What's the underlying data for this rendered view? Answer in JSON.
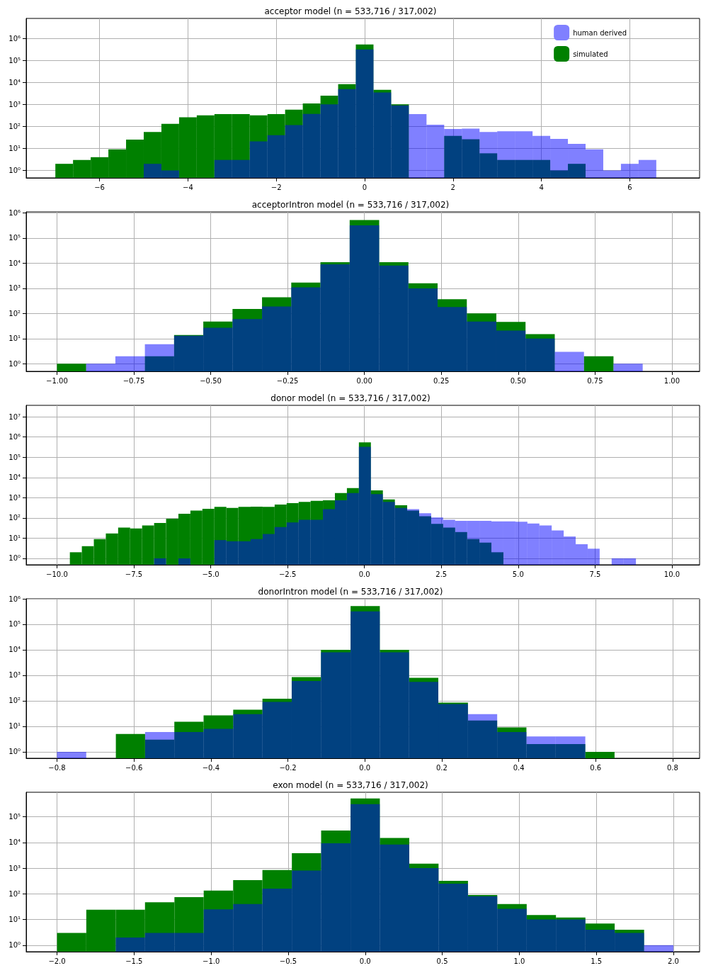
{
  "chart_data": [
    {
      "type": "histogram",
      "title": "acceptor model (n = 533,716 / 317,002)",
      "legend": "top right",
      "grid": true,
      "log": "y",
      "bins": [
        -7.0,
        -6.6,
        -6.2,
        -5.8,
        -5.4,
        -5.0,
        -4.6,
        -4.2,
        -3.8,
        -3.4,
        -3.0,
        -2.6,
        -2.2,
        -1.8,
        -1.4,
        -1.0,
        -0.6,
        -0.2,
        0.2,
        0.6,
        1.0,
        1.4,
        1.8,
        2.2,
        2.6,
        3.0,
        3.4,
        3.8,
        4.2,
        4.6,
        5.0,
        5.4,
        5.8,
        6.2,
        6.6
      ],
      "series": [
        {
          "name": "human derived",
          "color": "#8080ff",
          "values": [
            null,
            null,
            null,
            null,
            null,
            2,
            1,
            null,
            null,
            3,
            3,
            21,
            40,
            115,
            370,
            1000,
            4900,
            310000,
            3500,
            900,
            360,
            120,
            76,
            80,
            56,
            60,
            60,
            37,
            27,
            16,
            9,
            1,
            2,
            3
          ]
        },
        {
          "name": "simulated",
          "color": "#008000",
          "values": [
            2,
            3,
            4,
            9,
            25,
            56,
            130,
            260,
            320,
            360,
            360,
            320,
            360,
            580,
            1100,
            2500,
            8300,
            530000,
            4600,
            1000,
            null,
            null,
            37,
            26,
            6,
            3,
            3,
            3,
            1,
            2,
            null,
            null,
            null,
            null
          ]
        }
      ],
      "xlim": [
        -7.66,
        7.58
      ],
      "xticks": [
        {
          "value": -6,
          "label": "−6"
        },
        {
          "value": -4,
          "label": "−4"
        },
        {
          "value": -2,
          "label": "−2"
        },
        0,
        2,
        4,
        6
      ],
      "ylim": [
        0.46,
        8000000
      ],
      "yticks": [
        {
          "value": 1,
          "label": "10⁰"
        },
        {
          "value": 10,
          "label": "10¹"
        },
        {
          "value": 100,
          "label": "10²"
        },
        {
          "value": 1000,
          "label": "10³"
        },
        {
          "value": 10000,
          "label": "10⁴"
        },
        {
          "value": 100000,
          "label": "10⁵"
        },
        {
          "value": 1000000,
          "label": "10⁶"
        }
      ]
    },
    {
      "type": "histogram",
      "title": "acceptorIntron model (n = 533,716 / 317,002)",
      "grid": true,
      "log": "y",
      "bins": [
        -1.0,
        -0.905,
        -0.81,
        -0.714,
        -0.619,
        -0.524,
        -0.429,
        -0.333,
        -0.238,
        -0.143,
        -0.048,
        0.048,
        0.143,
        0.238,
        0.333,
        0.429,
        0.524,
        0.619,
        0.714,
        0.81,
        0.905
      ],
      "series": [
        {
          "color": "#8080ff",
          "values": [
            null,
            1,
            2,
            6,
            13,
            27,
            60,
            190,
            1100,
            9000,
            320000,
            8000,
            1000,
            180,
            48,
            21,
            10,
            3,
            null,
            1
          ]
        },
        {
          "color": "#008000",
          "values": [
            1,
            null,
            null,
            2,
            14,
            48,
            150,
            440,
            1700,
            11000,
            520000,
            11000,
            1600,
            370,
            100,
            46,
            15,
            null,
            2,
            null
          ]
        }
      ],
      "xlim": [
        -1.1,
        1.09
      ],
      "xticks": [
        {
          "value": -1,
          "label": "−1.00"
        },
        {
          "value": -0.75,
          "label": "−0.75"
        },
        {
          "value": -0.5,
          "label": "−0.50"
        },
        {
          "value": -0.25,
          "label": "−0.25"
        },
        {
          "value": 0,
          "label": "0.00"
        },
        {
          "value": 0.25,
          "label": "0.25"
        },
        {
          "value": 0.5,
          "label": "0.50"
        },
        {
          "value": 0.75,
          "label": "0.75"
        },
        {
          "value": 1,
          "label": "1.00"
        }
      ],
      "ylim": [
        0.5,
        1100000
      ],
      "yticks": [
        {
          "value": 1,
          "label": "10⁰"
        },
        {
          "value": 10,
          "label": "10¹"
        },
        {
          "value": 100,
          "label": "10²"
        },
        {
          "value": 1000,
          "label": "10³"
        },
        {
          "value": 10000,
          "label": "10⁴"
        },
        {
          "value": 100000,
          "label": "10⁵"
        },
        {
          "value": 1000000,
          "label": "10⁶"
        }
      ]
    },
    {
      "type": "histogram",
      "title": "donor model (n = 533,716 / 317,002)",
      "grid": true,
      "log": "y",
      "bins": [
        -9.58,
        -9.19,
        -8.8,
        -8.41,
        -8.01,
        -7.62,
        -7.23,
        -6.84,
        -6.45,
        -6.05,
        -5.66,
        -5.27,
        -4.88,
        -4.49,
        -4.1,
        -3.7,
        -3.31,
        -2.92,
        -2.53,
        -2.14,
        -1.75,
        -1.35,
        -0.96,
        -0.57,
        -0.18,
        0.21,
        0.6,
        0.99,
        1.39,
        1.78,
        2.17,
        2.56,
        2.95,
        3.34,
        3.74,
        4.13,
        4.52,
        4.91,
        5.3,
        5.69,
        6.09,
        6.48,
        6.87,
        7.26,
        7.65,
        8.04,
        8.43,
        8.83
      ],
      "series": [
        {
          "color": "#8080ff",
          "values": [
            null,
            null,
            null,
            null,
            null,
            null,
            null,
            1,
            null,
            1,
            null,
            null,
            8,
            7,
            7,
            9,
            16,
            35,
            60,
            80,
            80,
            270,
            750,
            1700,
            330000,
            1500,
            620,
            310,
            270,
            170,
            105,
            80,
            72,
            72,
            72,
            68,
            68,
            65,
            53,
            42,
            24,
            12,
            5,
            3,
            null,
            1,
            1
          ]
        },
        {
          "color": "#008000",
          "values": [
            2,
            4,
            9,
            17,
            33,
            30,
            42,
            56,
            91,
            160,
            230,
            280,
            350,
            310,
            350,
            360,
            350,
            460,
            540,
            620,
            700,
            750,
            1700,
            3000,
            550000,
            2300,
            830,
            420,
            230,
            120,
            51,
            33,
            20,
            9,
            6,
            2,
            null,
            null,
            null,
            null,
            null,
            null,
            null,
            null,
            null,
            null,
            null
          ]
        }
      ],
      "xlim": [
        -11,
        10.9
      ],
      "xticks": [
        {
          "value": -10,
          "label": "−10.0"
        },
        {
          "value": -7.5,
          "label": "−7.5"
        },
        {
          "value": -5,
          "label": "−5.0"
        },
        {
          "value": -2.5,
          "label": "−2.5"
        },
        {
          "value": 0,
          "label": "0.0"
        },
        {
          "value": 2.5,
          "label": "2.5"
        },
        {
          "value": 5,
          "label": "5.0"
        },
        {
          "value": 7.5,
          "label": "7.5"
        },
        {
          "value": 10,
          "label": "10.0"
        }
      ],
      "ylim": [
        0.48,
        37000000
      ],
      "yticks": [
        {
          "value": 1,
          "label": "10⁰"
        },
        {
          "value": 10,
          "label": "10¹"
        },
        {
          "value": 100,
          "label": "10²"
        },
        {
          "value": 1000,
          "label": "10³"
        },
        {
          "value": 10000,
          "label": "10⁴"
        },
        {
          "value": 100000,
          "label": "10⁵"
        },
        {
          "value": 1000000,
          "label": "10⁶"
        },
        {
          "value": 10000000,
          "label": "10⁷"
        }
      ]
    },
    {
      "type": "histogram",
      "title": "donorIntron model (n = 533,716 / 317,002)",
      "grid": true,
      "log": "y",
      "bins": [
        -0.8,
        -0.724,
        -0.647,
        -0.571,
        -0.495,
        -0.419,
        -0.342,
        -0.266,
        -0.19,
        -0.114,
        -0.037,
        0.039,
        0.115,
        0.191,
        0.268,
        0.344,
        0.42,
        0.496,
        0.573,
        0.649
      ],
      "series": [
        {
          "color": "#8080ff",
          "values": [
            1,
            null,
            null,
            6,
            6,
            8,
            30,
            90,
            600,
            8000,
            320000,
            8000,
            550,
            75,
            30,
            6,
            4,
            4,
            null
          ]
        },
        {
          "color": "#008000",
          "values": [
            null,
            null,
            5,
            3,
            15,
            27,
            45,
            120,
            850,
            10000,
            520000,
            10000,
            800,
            85,
            17,
            9,
            2,
            2,
            1
          ]
        }
      ],
      "xlim": [
        -0.88,
        0.87
      ],
      "xticks": [
        {
          "value": -0.8,
          "label": "−0.8"
        },
        {
          "value": -0.6,
          "label": "−0.6"
        },
        {
          "value": -0.4,
          "label": "−0.4"
        },
        {
          "value": -0.2,
          "label": "−0.2"
        },
        {
          "value": 0,
          "label": "0.0"
        },
        {
          "value": 0.2,
          "label": "0.2"
        },
        {
          "value": 0.4,
          "label": "0.4"
        },
        {
          "value": 0.6,
          "label": "0.6"
        },
        {
          "value": 0.8,
          "label": "0.8"
        }
      ],
      "ylim": [
        0.56,
        1000000
      ],
      "yticks": [
        {
          "value": 1,
          "label": "10⁰"
        },
        {
          "value": 10,
          "label": "10¹"
        },
        {
          "value": 100,
          "label": "10²"
        },
        {
          "value": 1000,
          "label": "10³"
        },
        {
          "value": 10000,
          "label": "10⁴"
        },
        {
          "value": 100000,
          "label": "10⁵"
        },
        {
          "value": 1000000,
          "label": "10⁶"
        }
      ]
    },
    {
      "type": "histogram",
      "title": "exon model (n = 533,716 / 317,002)",
      "grid": true,
      "log": "y",
      "bins": [
        -2.0,
        -1.81,
        -1.619,
        -1.429,
        -1.238,
        -1.048,
        -0.857,
        -0.667,
        -0.476,
        -0.286,
        -0.095,
        0.095,
        0.286,
        0.476,
        0.667,
        0.857,
        1.048,
        1.238,
        1.429,
        1.619,
        1.81,
        2.0
      ],
      "series": [
        {
          "color": "#8080ff",
          "values": [
            null,
            null,
            2,
            3,
            3,
            25,
            40,
            160,
            800,
            9300,
            310000,
            8300,
            1000,
            250,
            80,
            26,
            10,
            10,
            4,
            3,
            1
          ]
        },
        {
          "color": "#008000",
          "values": [
            3,
            24,
            24,
            47,
            75,
            135,
            340,
            840,
            3800,
            29000,
            520000,
            15000,
            1500,
            320,
            90,
            40,
            15,
            12,
            7,
            4,
            null
          ]
        }
      ],
      "xlim": [
        -2.2,
        2.17
      ],
      "xticks": [
        {
          "value": -2,
          "label": "−2.0"
        },
        {
          "value": -1.5,
          "label": "−1.5"
        },
        {
          "value": -1,
          "label": "−1.0"
        },
        {
          "value": -0.5,
          "label": "−0.5"
        },
        {
          "value": 0,
          "label": "0.0"
        },
        {
          "value": 0.5,
          "label": "0.5"
        },
        {
          "value": 1,
          "label": "1.0"
        },
        {
          "value": 1.5,
          "label": "1.5"
        },
        {
          "value": 2,
          "label": "2.0"
        }
      ],
      "ylim": [
        0.56,
        900000
      ],
      "yticks": [
        {
          "value": 1,
          "label": "10⁰"
        },
        {
          "value": 10,
          "label": "10¹"
        },
        {
          "value": 100,
          "label": "10²"
        },
        {
          "value": 1000,
          "label": "10³"
        },
        {
          "value": 10000,
          "label": "10⁴"
        },
        {
          "value": 100000,
          "label": "10⁵"
        }
      ]
    }
  ]
}
